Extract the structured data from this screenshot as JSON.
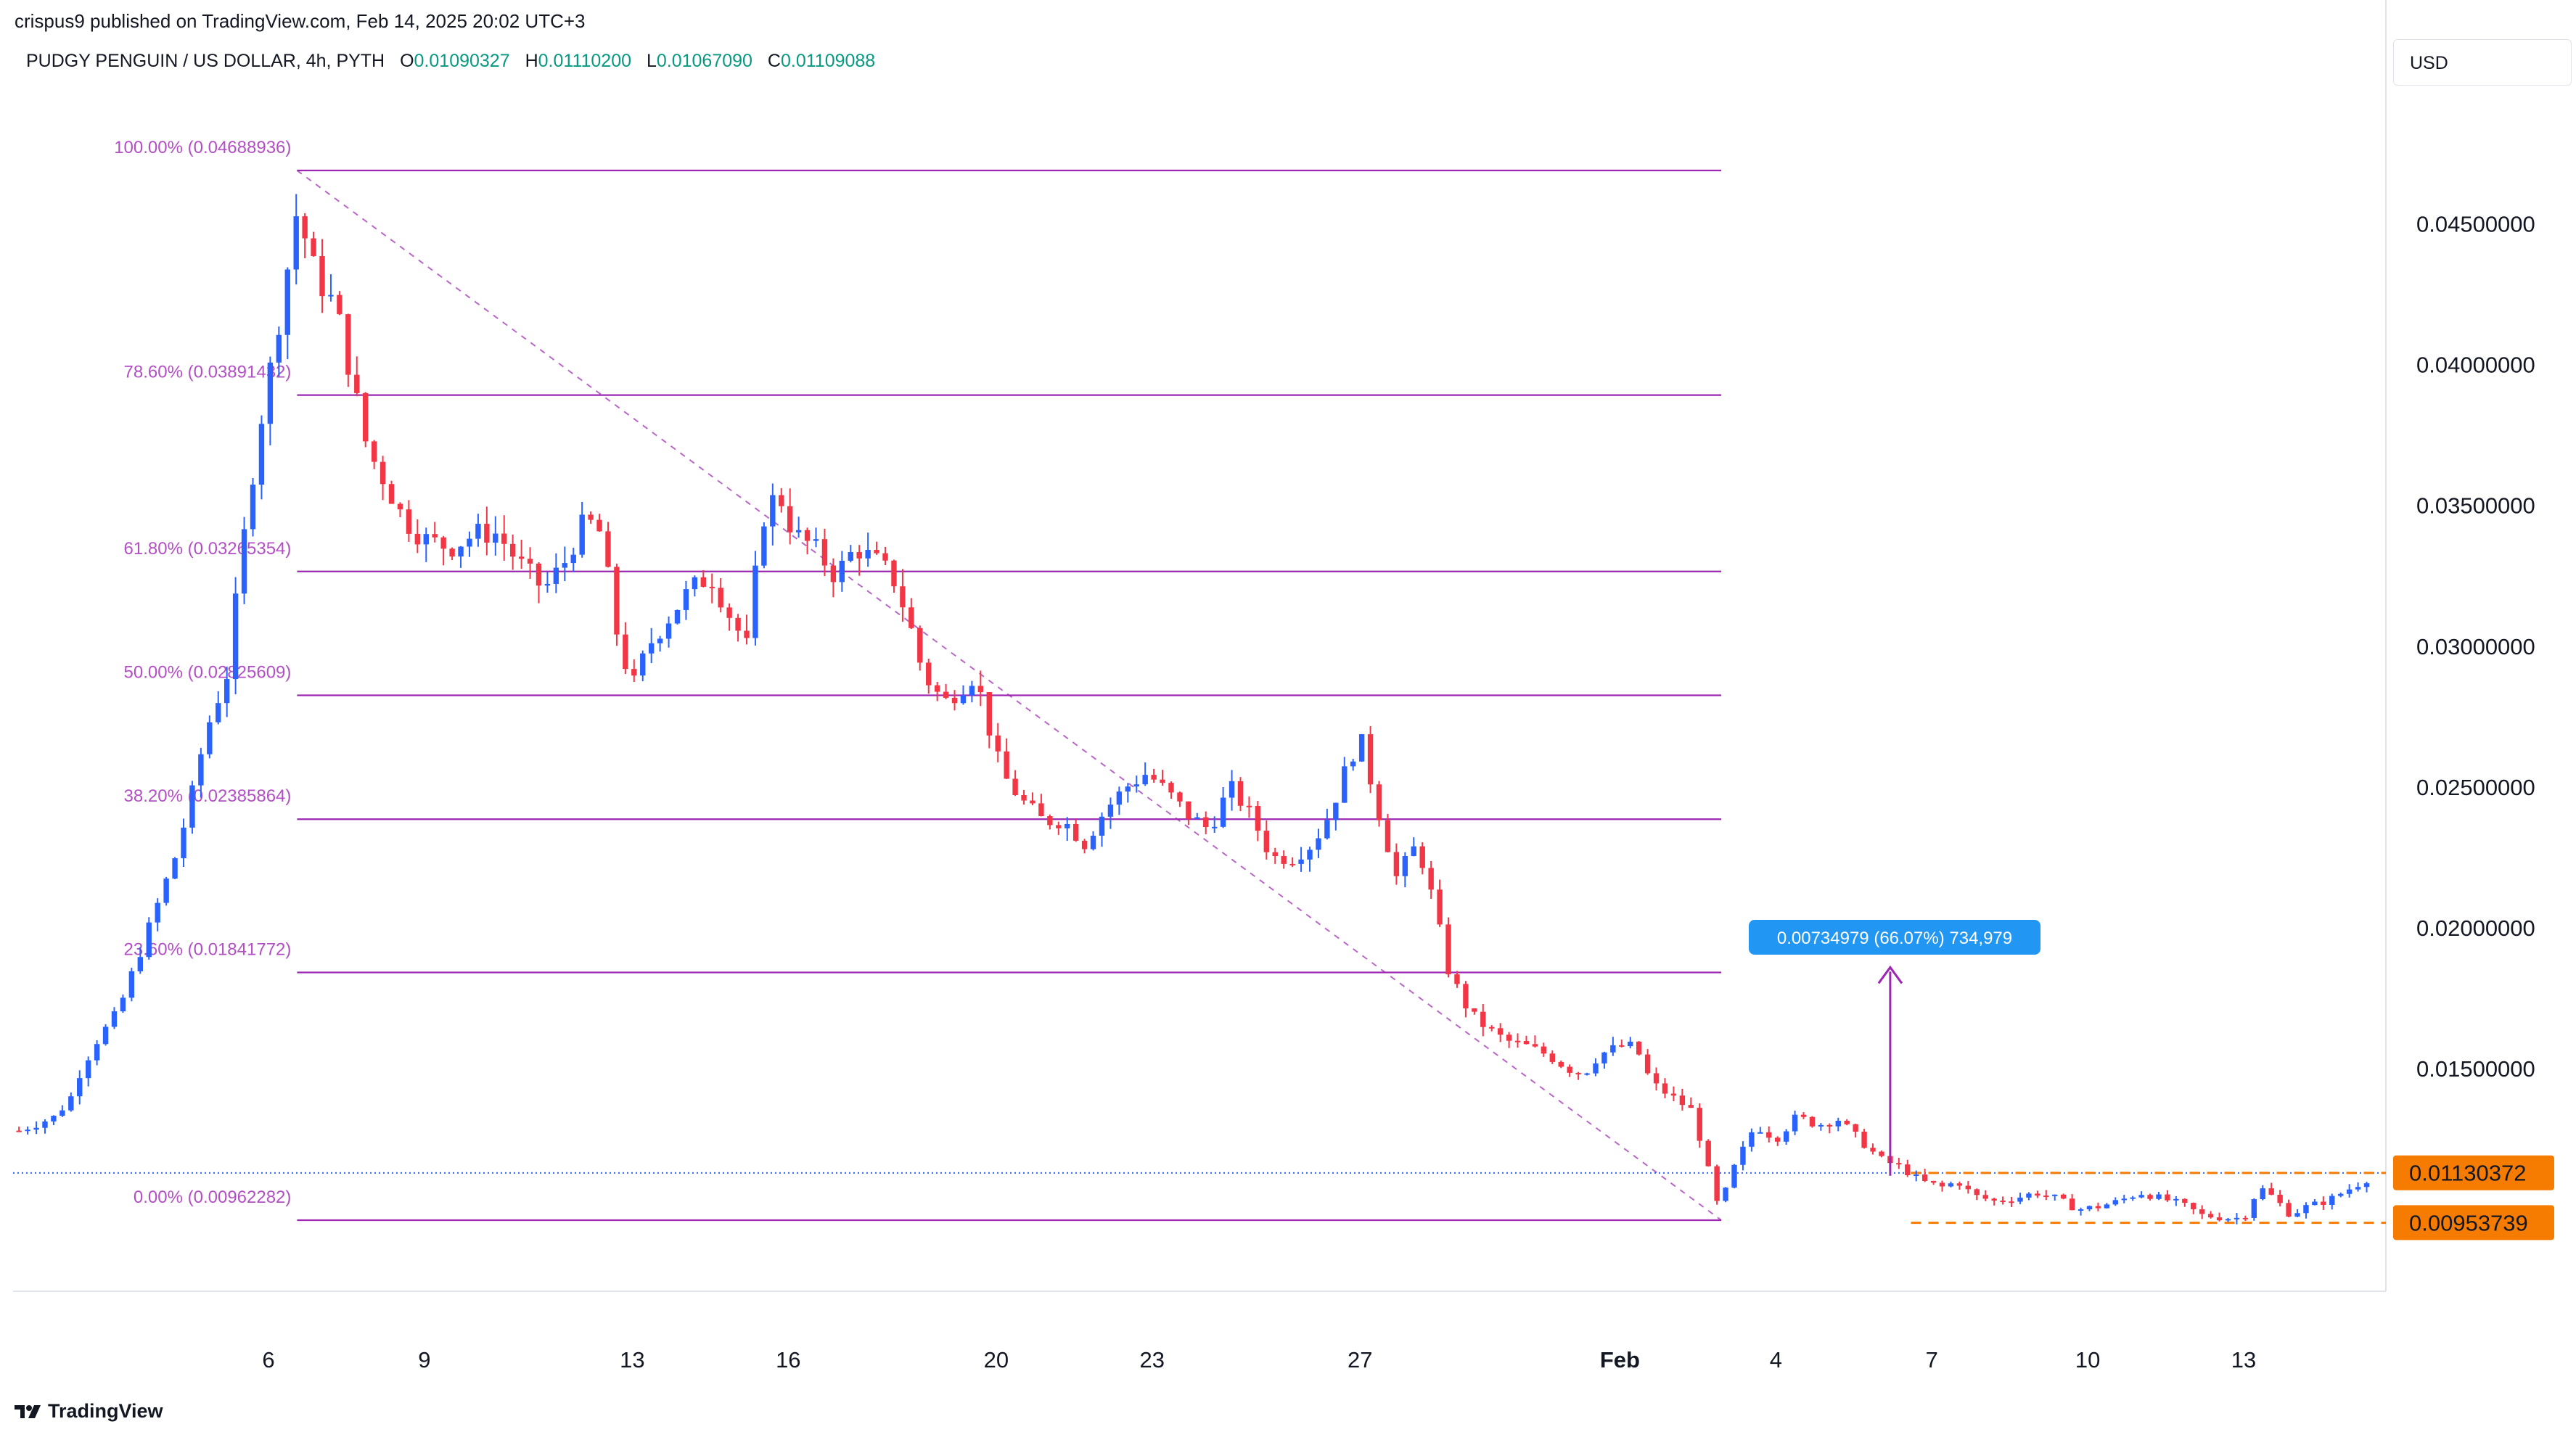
{
  "attribution": "crispus9 published on TradingView.com, Feb 14, 2025 20:02 UTC+3",
  "header": {
    "symbol": "PUDGY PENGUIN / US DOLLAR, 4h, PYTH",
    "o_label": "O",
    "o_value": "0.01090327",
    "h_label": "H",
    "h_value": "0.01110200",
    "l_label": "L",
    "l_value": "0.01067090",
    "c_label": "C",
    "c_value": "0.01109088"
  },
  "currency_button": "USD",
  "footer_brand": "TradingView",
  "colors": {
    "up": "#2962ff",
    "down": "#f23645",
    "fib": "#9c27b0",
    "fib_label": "#b34fc4",
    "orange": "#f57c00",
    "measure": "#2196f3",
    "price_line": "#2962ff"
  },
  "chart_data": {
    "type": "candlestick",
    "title": "PUDGY PENGUIN / US DOLLAR, 4h, PYTH",
    "timeframe": "4h",
    "ylim": [
      0.005,
      0.0475
    ],
    "y_ticks": [
      "0.04500000",
      "0.04000000",
      "0.03500000",
      "0.03000000",
      "0.02500000",
      "0.02000000",
      "0.01500000"
    ],
    "x_ticks": [
      "6",
      "9",
      "13",
      "16",
      "20",
      "23",
      "27",
      "Feb",
      "4",
      "7",
      "10",
      "13"
    ],
    "x_tick_days": [
      6,
      9,
      13,
      16,
      20,
      23,
      27,
      32,
      35,
      38,
      41,
      44
    ],
    "day_range": [
      1.2,
      46.4
    ],
    "price_badges": [
      {
        "label": "0.01130372",
        "value": 0.01130372
      },
      {
        "label": "0.00953739",
        "value": 0.00953739
      }
    ],
    "fibonacci": {
      "start_day": 6.55,
      "end_day": 33.95,
      "levels": [
        {
          "label": "100.00% (0.04688936)",
          "value": 0.04688936
        },
        {
          "label": "78.60% (0.03891432)",
          "value": 0.03891432
        },
        {
          "label": "61.80% (0.03265354)",
          "value": 0.03265354
        },
        {
          "label": "50.00% (0.02825609)",
          "value": 0.02825609
        },
        {
          "label": "38.20% (0.02385864)",
          "value": 0.02385864
        },
        {
          "label": "23.60% (0.01841772)",
          "value": 0.01841772
        },
        {
          "label": "0.00% (0.00962282)",
          "value": 0.00962282
        }
      ]
    },
    "measure": {
      "label": "0.00734979 (66.07%) 734,979",
      "day": 37.2,
      "from": 0.0112,
      "to": 0.0186
    },
    "range_box": {
      "start_day": 37.6,
      "end_day": 46.3,
      "top": 0.0113,
      "bottom": 0.00953
    },
    "current_price": 0.0113,
    "anchors": [
      [
        1.2,
        0.0128
      ],
      [
        1.9,
        0.0133
      ],
      [
        2.2,
        0.014
      ],
      [
        2.4,
        0.015
      ],
      [
        2.7,
        0.016
      ],
      [
        3.1,
        0.017
      ],
      [
        3.3,
        0.018
      ],
      [
        3.6,
        0.0195
      ],
      [
        3.9,
        0.021
      ],
      [
        4.2,
        0.0225
      ],
      [
        4.5,
        0.0245
      ],
      [
        4.8,
        0.027
      ],
      [
        5.2,
        0.029
      ],
      [
        5.5,
        0.0335
      ],
      [
        5.8,
        0.0375
      ],
      [
        6.15,
        0.041
      ],
      [
        6.55,
        0.0455
      ],
      [
        6.9,
        0.0432
      ],
      [
        7.3,
        0.042
      ],
      [
        7.6,
        0.0395
      ],
      [
        7.9,
        0.037
      ],
      [
        8.2,
        0.036
      ],
      [
        8.6,
        0.0345
      ],
      [
        9.0,
        0.0338
      ],
      [
        9.5,
        0.0335
      ],
      [
        10.0,
        0.034
      ],
      [
        10.4,
        0.034
      ],
      [
        10.8,
        0.033
      ],
      [
        11.3,
        0.032
      ],
      [
        11.7,
        0.033
      ],
      [
        12.1,
        0.0345
      ],
      [
        12.4,
        0.034
      ],
      [
        12.7,
        0.0305
      ],
      [
        13.0,
        0.0285
      ],
      [
        13.3,
        0.03
      ],
      [
        13.7,
        0.031
      ],
      [
        14.1,
        0.032
      ],
      [
        14.5,
        0.0325
      ],
      [
        14.9,
        0.031
      ],
      [
        15.2,
        0.03
      ],
      [
        15.5,
        0.0345
      ],
      [
        15.8,
        0.0355
      ],
      [
        16.1,
        0.034
      ],
      [
        16.5,
        0.0335
      ],
      [
        16.9,
        0.0325
      ],
      [
        17.3,
        0.0335
      ],
      [
        17.7,
        0.033
      ],
      [
        18.0,
        0.0325
      ],
      [
        18.3,
        0.031
      ],
      [
        18.6,
        0.029
      ],
      [
        19.0,
        0.028
      ],
      [
        19.3,
        0.0285
      ],
      [
        19.6,
        0.029
      ],
      [
        19.8,
        0.0275
      ],
      [
        20.1,
        0.0255
      ],
      [
        20.5,
        0.0245
      ],
      [
        20.9,
        0.0238
      ],
      [
        21.3,
        0.0238
      ],
      [
        21.7,
        0.023
      ],
      [
        22.1,
        0.0242
      ],
      [
        22.5,
        0.025
      ],
      [
        22.9,
        0.0255
      ],
      [
        23.3,
        0.0248
      ],
      [
        23.7,
        0.024
      ],
      [
        24.1,
        0.0235
      ],
      [
        24.5,
        0.025
      ],
      [
        24.9,
        0.024
      ],
      [
        25.3,
        0.0225
      ],
      [
        25.7,
        0.0225
      ],
      [
        26.1,
        0.023
      ],
      [
        26.4,
        0.024
      ],
      [
        26.7,
        0.0255
      ],
      [
        27.0,
        0.0268
      ],
      [
        27.3,
        0.0245
      ],
      [
        27.7,
        0.0218
      ],
      [
        28.1,
        0.023
      ],
      [
        28.4,
        0.021
      ],
      [
        28.7,
        0.0185
      ],
      [
        29.1,
        0.017
      ],
      [
        29.4,
        0.0165
      ],
      [
        29.8,
        0.016
      ],
      [
        30.2,
        0.0158
      ],
      [
        30.6,
        0.0155
      ],
      [
        31.0,
        0.015
      ],
      [
        31.3,
        0.0148
      ],
      [
        31.6,
        0.0155
      ],
      [
        32.0,
        0.0158
      ],
      [
        32.3,
        0.0158
      ],
      [
        32.6,
        0.0145
      ],
      [
        33.0,
        0.014
      ],
      [
        33.4,
        0.0135
      ],
      [
        33.9,
        0.01
      ],
      [
        34.2,
        0.0115
      ],
      [
        34.6,
        0.013
      ],
      [
        35.0,
        0.0125
      ],
      [
        35.4,
        0.0133
      ],
      [
        35.8,
        0.013
      ],
      [
        36.2,
        0.0132
      ],
      [
        36.6,
        0.0125
      ],
      [
        37.0,
        0.0118
      ],
      [
        37.4,
        0.0115
      ],
      [
        37.8,
        0.011
      ],
      [
        38.2,
        0.0108
      ],
      [
        38.5,
        0.011
      ],
      [
        38.8,
        0.0105
      ],
      [
        39.2,
        0.0103
      ],
      [
        39.6,
        0.0104
      ],
      [
        40.0,
        0.0106
      ],
      [
        40.4,
        0.0104
      ],
      [
        40.8,
        0.01
      ],
      [
        41.2,
        0.0101
      ],
      [
        41.6,
        0.0103
      ],
      [
        42.0,
        0.0106
      ],
      [
        42.4,
        0.0104
      ],
      [
        42.8,
        0.0102
      ],
      [
        43.2,
        0.0098
      ],
      [
        43.6,
        0.0097
      ],
      [
        44.0,
        0.0097
      ],
      [
        44.3,
        0.0108
      ],
      [
        44.6,
        0.0104
      ],
      [
        44.9,
        0.0098
      ],
      [
        45.2,
        0.0101
      ],
      [
        45.6,
        0.0103
      ],
      [
        46.0,
        0.0107
      ],
      [
        46.4,
        0.0111
      ]
    ]
  }
}
